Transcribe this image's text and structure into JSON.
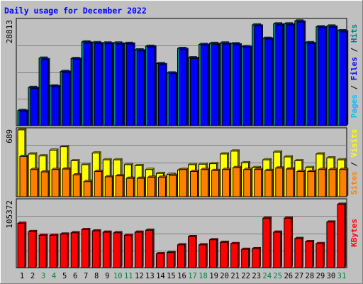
{
  "chart_data": {
    "type": "bar",
    "title": "Daily usage for December 2022",
    "days": [
      "1",
      "2",
      "3",
      "4",
      "5",
      "6",
      "7",
      "8",
      "9",
      "10",
      "11",
      "12",
      "13",
      "14",
      "15",
      "16",
      "17",
      "18",
      "19",
      "20",
      "21",
      "22",
      "23",
      "24",
      "25",
      "26",
      "27",
      "28",
      "29",
      "30",
      "31"
    ],
    "weekend_days": [
      "3",
      "4",
      "10",
      "11",
      "17",
      "18",
      "24",
      "25",
      "31"
    ],
    "panels": [
      {
        "id": "pages_files_hits",
        "max_label": "28813",
        "ylim": [
          0,
          28813
        ],
        "axis_label_parts": [
          "Pages",
          " / ",
          "Files",
          " / ",
          "Hits"
        ],
        "series": [
          {
            "name": "Hits",
            "values": [
              4200,
              10600,
              18700,
              11000,
              15000,
              18600,
              23200,
              23000,
              22900,
              22900,
              22800,
              21000,
              22000,
              17200,
              14600,
              21400,
              18800,
              22500,
              22800,
              22900,
              22700,
              21900,
              27900,
              24200,
              28200,
              28200,
              29000,
              23000,
              27400,
              27600,
              26300
            ]
          },
          {
            "name": "Files",
            "values": [
              4000,
              10300,
              18300,
              10800,
              14800,
              18400,
              22900,
              22700,
              22700,
              22600,
              22600,
              20700,
              21800,
              16900,
              14400,
              21100,
              18600,
              22300,
              22500,
              22600,
              22400,
              21700,
              27600,
              24000,
              27900,
              27900,
              28700,
              22700,
              27100,
              27300,
              26000
            ]
          }
        ]
      },
      {
        "id": "visits_sites",
        "max_label": "689",
        "ylim": [
          0,
          689
        ],
        "axis_label_parts": [
          "Sites",
          " / ",
          "Visits"
        ],
        "series": [
          {
            "name": "Visits",
            "values": [
              689,
              440,
              420,
              480,
              515,
              370,
              330,
              450,
              380,
              380,
              330,
              320,
              280,
              240,
              230,
              275,
              330,
              335,
              340,
              440,
              470,
              350,
              300,
              380,
              460,
              410,
              370,
              300,
              440,
              400,
              380
            ]
          },
          {
            "name": "Sites",
            "values": [
              415,
              280,
              255,
              280,
              285,
              225,
              155,
              260,
              205,
              215,
              190,
              190,
              200,
              200,
              220,
              280,
              260,
              280,
              270,
              280,
              300,
              280,
              280,
              270,
              295,
              285,
              260,
              260,
              280,
              280,
              280
            ]
          }
        ]
      },
      {
        "id": "kbytes",
        "max_label": "105372",
        "ylim": [
          0,
          105372
        ],
        "axis_label_parts": [
          "KBytes"
        ],
        "series": [
          {
            "name": "KBytes",
            "values": [
              70000,
              57000,
              51000,
              51000,
              53000,
              55000,
              60000,
              58000,
              56000,
              55000,
              51000,
              56000,
              59000,
              22000,
              24000,
              36000,
              49000,
              36000,
              44000,
              40000,
              38000,
              29000,
              30000,
              78000,
              56000,
              78000,
              46000,
              41000,
              38000,
              72000,
              100000
            ]
          }
        ]
      }
    ],
    "colors": {
      "Hits": "#008080",
      "Files": "#0000ff",
      "Pages": "#00c0ff",
      "Visits": "#ffff00",
      "Sites": "#ff8000",
      "KBytes": "#ff0000",
      "title": "#0000ff",
      "weekday_label": "#000000",
      "weekend_label": "#008040"
    }
  }
}
